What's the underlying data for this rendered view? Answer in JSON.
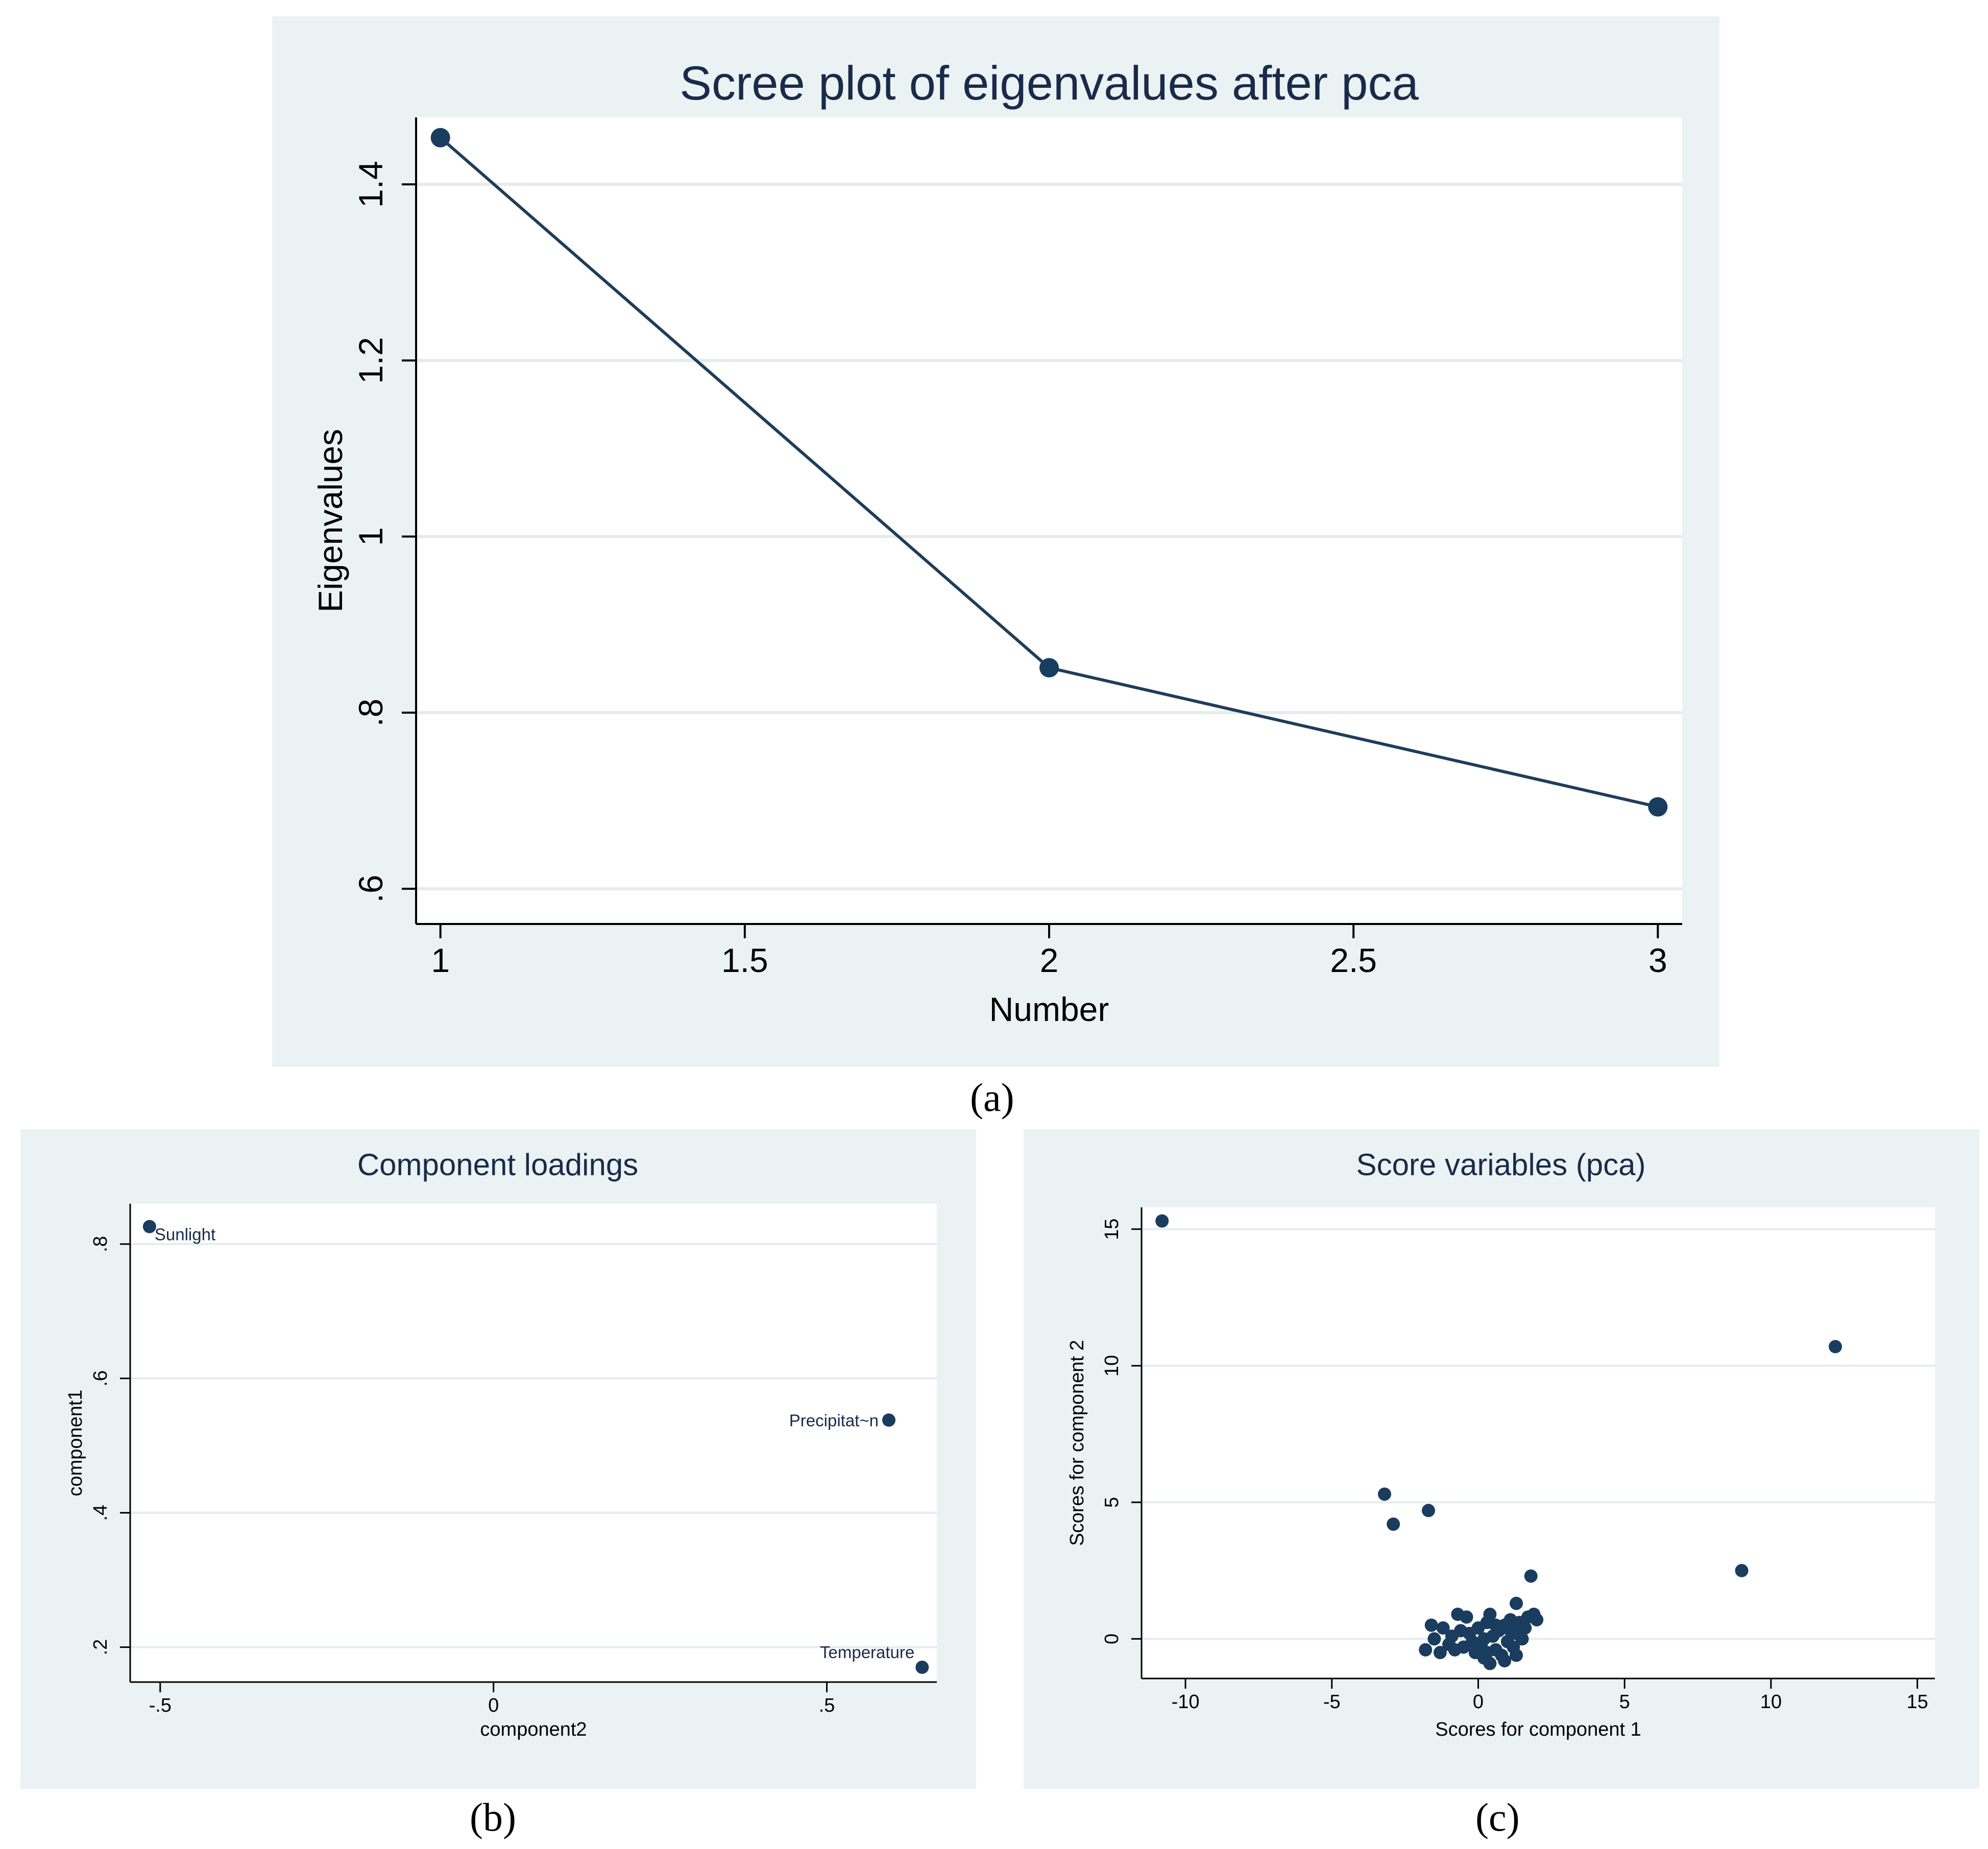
{
  "figure": {
    "panel_labels": [
      "(a)",
      "(b)",
      "(c)"
    ]
  },
  "chart_data": [
    {
      "type": "line",
      "title": "Scree plot of eigenvalues after pca",
      "xlabel": "Number",
      "ylabel": "Eigenvalues",
      "x": [
        1,
        2,
        3
      ],
      "series": [
        {
          "values": [
            1.453,
            0.851,
            0.693
          ]
        }
      ],
      "xlim": [
        0.96,
        3.04
      ],
      "ylim": [
        0.56,
        1.476
      ],
      "xticks": [
        1,
        1.5,
        2,
        2.5,
        3
      ],
      "xtick_labels": [
        "1",
        "1.5",
        "2",
        "2.5",
        "3"
      ],
      "yticks": [
        0.6,
        0.8,
        1.0,
        1.2,
        1.4
      ],
      "ytick_labels": [
        ".6",
        ".8",
        "1",
        "1.2",
        "1.4"
      ],
      "grid": true,
      "colors": {
        "line": "#1f3d5a",
        "marker": "#1a3c5e",
        "background": "#eaf2f3",
        "plot_bg": "#ffffff",
        "text": "#1a2a4a"
      }
    },
    {
      "type": "scatter",
      "title": "Component loadings",
      "xlabel": "component2",
      "ylabel": "component1",
      "points": [
        {
          "label": "Sunlight",
          "x": -0.516,
          "y": 0.826
        },
        {
          "label": "Precipitat~n",
          "x": 0.593,
          "y": 0.538
        },
        {
          "label": "Temperature",
          "x": 0.643,
          "y": 0.17
        }
      ],
      "xlim": [
        -0.545,
        0.665
      ],
      "ylim": [
        0.148,
        0.86
      ],
      "xticks": [
        -0.5,
        0,
        0.5
      ],
      "xtick_labels": [
        "-.5",
        "0",
        ".5"
      ],
      "yticks": [
        0.2,
        0.4,
        0.6,
        0.8
      ],
      "ytick_labels": [
        ".2",
        ".4",
        ".6",
        ".8"
      ],
      "grid": true,
      "colors": {
        "marker": "#1a3c5e",
        "background": "#eaf2f3",
        "plot_bg": "#ffffff",
        "text": "#1a2a4a"
      }
    },
    {
      "type": "scatter",
      "title": "Score variables (pca)",
      "xlabel": "Scores for component 1",
      "ylabel": "Scores for component 2",
      "points": [
        {
          "x": -10.8,
          "y": 15.3
        },
        {
          "x": 12.2,
          "y": 10.7
        },
        {
          "x": 9.0,
          "y": 2.5
        },
        {
          "x": -3.2,
          "y": 5.3
        },
        {
          "x": -2.9,
          "y": 4.2
        },
        {
          "x": -1.7,
          "y": 4.7
        },
        {
          "x": 1.8,
          "y": 2.3
        },
        {
          "x": 1.3,
          "y": 1.3
        },
        {
          "x": -1.0,
          "y": -0.2
        },
        {
          "x": -1.8,
          "y": -0.4
        },
        {
          "x": -1.6,
          "y": 0.5
        },
        {
          "x": -1.2,
          "y": 0.4
        },
        {
          "x": -0.9,
          "y": 0.1
        },
        {
          "x": -0.7,
          "y": 0.9
        },
        {
          "x": -0.4,
          "y": 0.8
        },
        {
          "x": -0.5,
          "y": -0.3
        },
        {
          "x": -0.3,
          "y": 0.2
        },
        {
          "x": -0.1,
          "y": -0.5
        },
        {
          "x": 0.0,
          "y": 0.4
        },
        {
          "x": 0.1,
          "y": -0.2
        },
        {
          "x": 0.2,
          "y": -0.7
        },
        {
          "x": 0.3,
          "y": 0.6
        },
        {
          "x": 0.4,
          "y": -0.9
        },
        {
          "x": 0.4,
          "y": 0.9
        },
        {
          "x": 0.5,
          "y": 0.1
        },
        {
          "x": 0.6,
          "y": -0.4
        },
        {
          "x": 0.7,
          "y": 0.3
        },
        {
          "x": 0.8,
          "y": -0.6
        },
        {
          "x": 0.9,
          "y": 0.5
        },
        {
          "x": 1.0,
          "y": -0.1
        },
        {
          "x": 1.1,
          "y": 0.7
        },
        {
          "x": 1.2,
          "y": -0.3
        },
        {
          "x": 1.3,
          "y": 0.2
        },
        {
          "x": 1.4,
          "y": 0.6
        },
        {
          "x": 1.5,
          "y": 0.0
        },
        {
          "x": 1.6,
          "y": 0.4
        },
        {
          "x": 1.7,
          "y": 0.8
        },
        {
          "x": 1.9,
          "y": 0.9
        },
        {
          "x": 2.0,
          "y": 0.7
        },
        {
          "x": 1.3,
          "y": -0.6
        },
        {
          "x": 0.9,
          "y": -0.8
        },
        {
          "x": 0.2,
          "y": 0.0
        },
        {
          "x": -0.2,
          "y": -0.1
        },
        {
          "x": -0.6,
          "y": 0.3
        },
        {
          "x": -1.3,
          "y": -0.5
        },
        {
          "x": -1.5,
          "y": 0.0
        },
        {
          "x": -0.8,
          "y": -0.4
        },
        {
          "x": 0.6,
          "y": 0.5
        },
        {
          "x": 1.1,
          "y": 0.3
        },
        {
          "x": 0.3,
          "y": -0.5
        }
      ],
      "xlim": [
        -11.5,
        15.6
      ],
      "ylim": [
        -1.45,
        15.8
      ],
      "xticks": [
        -10,
        -5,
        0,
        5,
        10,
        15
      ],
      "xtick_labels": [
        "-10",
        "-5",
        "0",
        "5",
        "10",
        "15"
      ],
      "yticks": [
        0,
        5,
        10,
        15
      ],
      "ytick_labels": [
        "0",
        "5",
        "10",
        "15"
      ],
      "grid": true,
      "colors": {
        "marker": "#1a3c5e",
        "background": "#eaf2f3",
        "plot_bg": "#ffffff",
        "text": "#1a2a4a"
      }
    }
  ]
}
